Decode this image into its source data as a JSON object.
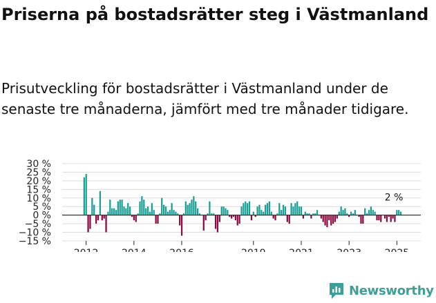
{
  "title": "Priserna på bostadsrätter steg i Västmanland",
  "subtitle": "Prisutveckling för bostadsrätter i Västmanland under de senaste tre månaderna, jämfört med tre månader tidigare.",
  "brand": {
    "name": "Newsworthy",
    "color": "#3f9e98"
  },
  "colors": {
    "positive": "#1a9e96",
    "negative": "#8c0a43",
    "grid": "#dddddd",
    "axis": "#222222"
  },
  "chart_data": {
    "type": "bar",
    "title": "Priserna på bostadsrätter steg i Västmanland",
    "xlabel": "",
    "ylabel": "",
    "ylim": [
      -15,
      30
    ],
    "yticks": [
      -15,
      -10,
      -5,
      0,
      5,
      10,
      15,
      20,
      25,
      30
    ],
    "ytick_labels": [
      "−15 %",
      "−10 %",
      "−5 %",
      "0 %",
      "5 %",
      "10 %",
      "15 %",
      "20 %",
      "25 %",
      "30 %"
    ],
    "xticks": [
      2012,
      2014,
      2016,
      2019,
      2021,
      2023,
      2025
    ],
    "x_start": 2011.92,
    "x_step": 0.0833,
    "grid": true,
    "annotation": "2 %",
    "values": [
      22,
      24,
      -10,
      -8,
      10,
      6,
      -5,
      -3,
      14,
      -3,
      -2,
      -10,
      2,
      9,
      4,
      4,
      3,
      8,
      9,
      9,
      5,
      4,
      7,
      5,
      -1,
      -3,
      -4,
      1,
      8,
      11,
      9,
      4,
      5,
      2,
      7,
      3,
      -5,
      -5,
      1,
      10,
      6,
      5,
      2,
      3,
      7,
      3,
      2,
      1,
      -6,
      -12,
      1,
      8,
      6,
      7,
      9,
      11,
      8,
      4,
      1,
      0,
      -9,
      -3,
      1,
      8,
      1,
      1,
      -8,
      -10,
      -4,
      5,
      5,
      4,
      3,
      -1,
      -2,
      -1,
      -3,
      -6,
      -5,
      5,
      7,
      8,
      7,
      8,
      -3,
      2,
      -1,
      5,
      6,
      3,
      2,
      6,
      7,
      8,
      2,
      -2,
      -3,
      1,
      7,
      3,
      6,
      5,
      -4,
      -5,
      7,
      5,
      7,
      8,
      5,
      5,
      -2,
      2,
      1,
      1,
      -2,
      1,
      1,
      3,
      0,
      -2,
      -4,
      -6,
      -7,
      -3,
      -6,
      -5,
      -4,
      -2,
      2,
      5,
      3,
      4,
      1,
      -1,
      2,
      1,
      3,
      0,
      -1,
      -5,
      -5,
      4,
      1,
      3,
      5,
      3,
      2,
      -3,
      -3,
      -4,
      0,
      -2,
      -4,
      -1,
      -4,
      -2,
      -4,
      3,
      3,
      2
    ]
  }
}
